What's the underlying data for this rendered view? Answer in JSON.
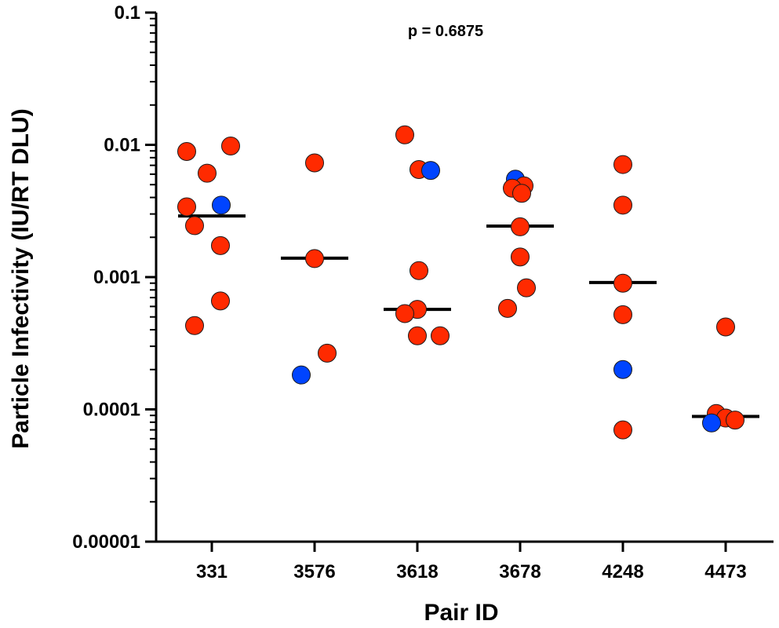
{
  "chart_data": {
    "type": "scatter",
    "title": "",
    "xlabel": "Pair ID",
    "ylabel": "Particle Infectivity (IU/RT DLU)",
    "y_scale": "log",
    "ylim": [
      1e-05,
      0.1
    ],
    "y_ticks": [
      "0.1",
      "0.01",
      "0.001",
      "0.0001",
      "0.00001"
    ],
    "categories": [
      "331",
      "3576",
      "3618",
      "3678",
      "4248",
      "4473"
    ],
    "annotation": "p = 0.6875",
    "colors": {
      "red": "#ff2a00",
      "blue": "#0044ff",
      "median": "#000000"
    },
    "groups": [
      {
        "category": "331",
        "median": 0.0029,
        "points": [
          {
            "value": 0.0089,
            "color": "red"
          },
          {
            "value": 0.0098,
            "color": "red"
          },
          {
            "value": 0.0061,
            "color": "red"
          },
          {
            "value": 0.0034,
            "color": "red"
          },
          {
            "value": 0.0035,
            "color": "blue"
          },
          {
            "value": 0.00245,
            "color": "red"
          },
          {
            "value": 0.00173,
            "color": "red"
          },
          {
            "value": 0.00066,
            "color": "red"
          },
          {
            "value": 0.00043,
            "color": "red"
          }
        ]
      },
      {
        "category": "3576",
        "median": 0.00139,
        "points": [
          {
            "value": 0.0073,
            "color": "red"
          },
          {
            "value": 0.00138,
            "color": "red"
          },
          {
            "value": 0.000266,
            "color": "red"
          },
          {
            "value": 0.000182,
            "color": "blue"
          }
        ]
      },
      {
        "category": "3618",
        "median": 0.00057,
        "points": [
          {
            "value": 0.0119,
            "color": "red"
          },
          {
            "value": 0.0065,
            "color": "red"
          },
          {
            "value": 0.0064,
            "color": "blue"
          },
          {
            "value": 0.00112,
            "color": "red"
          },
          {
            "value": 0.00057,
            "color": "red"
          },
          {
            "value": 0.00053,
            "color": "red"
          },
          {
            "value": 0.00036,
            "color": "red"
          },
          {
            "value": 0.00036,
            "color": "red"
          }
        ]
      },
      {
        "category": "3678",
        "median": 0.00243,
        "points": [
          {
            "value": 0.0055,
            "color": "blue"
          },
          {
            "value": 0.0049,
            "color": "red"
          },
          {
            "value": 0.0047,
            "color": "red"
          },
          {
            "value": 0.0043,
            "color": "red"
          },
          {
            "value": 0.0024,
            "color": "red"
          },
          {
            "value": 0.00142,
            "color": "red"
          },
          {
            "value": 0.00083,
            "color": "red"
          },
          {
            "value": 0.00058,
            "color": "red"
          }
        ]
      },
      {
        "category": "4248",
        "median": 0.00091,
        "points": [
          {
            "value": 0.0071,
            "color": "red"
          },
          {
            "value": 0.0035,
            "color": "red"
          },
          {
            "value": 0.0009,
            "color": "red"
          },
          {
            "value": 0.00052,
            "color": "red"
          },
          {
            "value": 0.0002,
            "color": "blue"
          },
          {
            "value": 7e-05,
            "color": "red"
          }
        ]
      },
      {
        "category": "4473",
        "median": 8.85e-05,
        "points": [
          {
            "value": 0.00042,
            "color": "red"
          },
          {
            "value": 9.3e-05,
            "color": "red"
          },
          {
            "value": 8.6e-05,
            "color": "red"
          },
          {
            "value": 8.3e-05,
            "color": "red"
          },
          {
            "value": 7.9e-05,
            "color": "blue"
          }
        ]
      }
    ]
  }
}
